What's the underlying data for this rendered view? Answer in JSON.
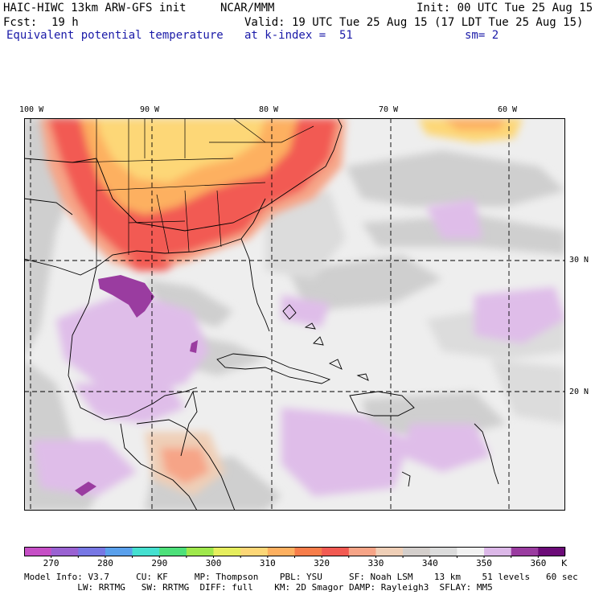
{
  "header": {
    "title": "HAIC-HIWC 13km ARW-GFS init",
    "org": "NCAR/MMM",
    "init": "Init: 00 UTC Tue 25 Aug 15",
    "fcst_label": "Fcst:",
    "fcst_value": "19 h",
    "valid": "Valid: 19 UTC Tue 25 Aug 15 (17 LDT Tue 25 Aug 15)",
    "field": "Equivalent potential temperature",
    "level": "at k-index =  51",
    "smooth": "sm= 2"
  },
  "axes": {
    "lon_labels": [
      "100 W",
      "90 W",
      "80 W",
      "70 W",
      "60 W"
    ],
    "lat_labels": [
      "30 N",
      "20 N"
    ]
  },
  "colorbar": {
    "unit": "K",
    "tick_labels": [
      "270",
      "280",
      "290",
      "300",
      "310",
      "320",
      "330",
      "340",
      "350",
      "360"
    ],
    "colors": [
      "#c64fc6",
      "#9a62d2",
      "#7777e4",
      "#5aa0ec",
      "#45e0d0",
      "#4de07a",
      "#9fe84c",
      "#e6ee5e",
      "#fdd777",
      "#fdb060",
      "#f77d4a",
      "#f25a52",
      "#f6a487",
      "#efcfb7",
      "#d4cfcc",
      "#dcdcdc",
      "#f2f2f2",
      "#dcb8e8",
      "#9a3ca0",
      "#6c0b78"
    ]
  },
  "model_info": {
    "line1": "Model Info: V3.7     CU: KF     MP: Thompson    PBL: YSU     SF: Noah LSM    13 km    51 levels   60 sec",
    "line2": "          LW: RRTMG   SW: RRTMG  DIFF: full    KM: 2D Smagor DAMP: Rayleigh3  SFLAY: MM5"
  }
}
